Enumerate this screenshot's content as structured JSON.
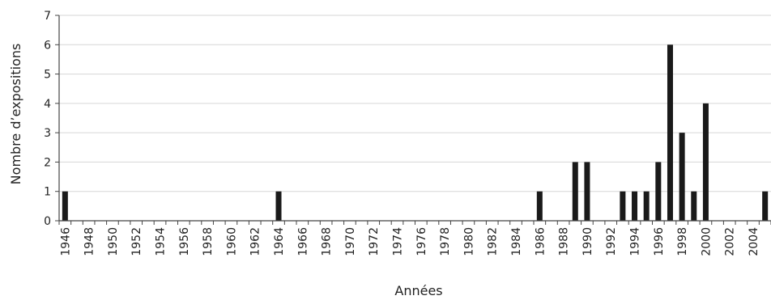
{
  "chart_data": {
    "type": "bar",
    "title": "",
    "xlabel": "Années",
    "ylabel": "Nombre d’expositions",
    "ylim": [
      0,
      7
    ],
    "yticks": [
      0,
      1,
      2,
      3,
      4,
      5,
      6,
      7
    ],
    "grid": true,
    "x_tick_labels": [
      "1946",
      "1948",
      "1950",
      "1952",
      "1954",
      "1956",
      "1958",
      "1960",
      "1962",
      "1964",
      "1966",
      "1968",
      "1970",
      "1972",
      "1974",
      "1976",
      "1978",
      "1980",
      "1982",
      "1984",
      "1986",
      "1988",
      "1990",
      "1992",
      "1994",
      "1996",
      "1998",
      "2000",
      "2002",
      "2004"
    ],
    "categories": [
      1946,
      1947,
      1948,
      1949,
      1950,
      1951,
      1952,
      1953,
      1954,
      1955,
      1956,
      1957,
      1958,
      1959,
      1960,
      1961,
      1962,
      1963,
      1964,
      1965,
      1966,
      1967,
      1968,
      1969,
      1970,
      1971,
      1972,
      1973,
      1974,
      1975,
      1976,
      1977,
      1978,
      1979,
      1980,
      1981,
      1982,
      1983,
      1984,
      1985,
      1986,
      1987,
      1988,
      1989,
      1990,
      1991,
      1992,
      1993,
      1994,
      1995,
      1996,
      1997,
      1998,
      1999,
      2000,
      2001,
      2002,
      2003,
      2004,
      2005
    ],
    "values": [
      1,
      0,
      0,
      0,
      0,
      0,
      0,
      0,
      0,
      0,
      0,
      0,
      0,
      0,
      0,
      0,
      0,
      0,
      1,
      0,
      0,
      0,
      0,
      0,
      0,
      0,
      0,
      0,
      0,
      0,
      0,
      0,
      0,
      0,
      0,
      0,
      0,
      0,
      0,
      0,
      1,
      0,
      0,
      2,
      2,
      0,
      0,
      1,
      1,
      1,
      2,
      6,
      3,
      1,
      4,
      0,
      0,
      0,
      0,
      1
    ],
    "colors": {
      "bar": "#1a1a1a",
      "grid": "#d6d6d6",
      "axis": "#444444",
      "text": "#222222"
    }
  }
}
